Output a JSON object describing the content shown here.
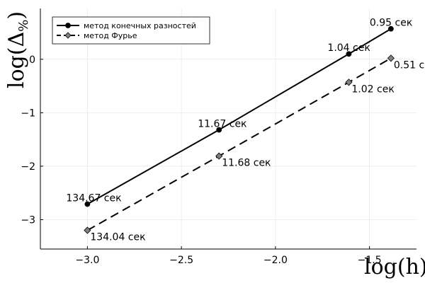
{
  "chart_data": {
    "type": "line",
    "title": "",
    "xlabel": "log(h)",
    "ylabel_main": "log(Δ",
    "ylabel_sub": "%",
    "ylabel_close": ")",
    "xlim": [
      -3.25,
      -1.25
    ],
    "ylim": [
      -3.55,
      0.95
    ],
    "xticks": [
      -3.0,
      -2.5,
      -2.0,
      -1.5
    ],
    "xtick_labels": [
      "−3.0",
      "−2.5",
      "−2.0",
      "−1.5"
    ],
    "yticks": [
      -3,
      -2,
      -1,
      0
    ],
    "ytick_labels": [
      "−3",
      "−2",
      "−1",
      "0"
    ],
    "grid": true,
    "legend_position": "top-left",
    "series": [
      {
        "name": "метод конечных разностей",
        "line_style": "solid",
        "marker": "circle",
        "color": "#000000",
        "marker_color": "#000000",
        "x": [
          -3.0,
          -2.3,
          -1.61,
          -1.386
        ],
        "y": [
          -2.71,
          -1.32,
          0.1,
          0.57
        ],
        "labels": [
          "134.67 сек",
          "11.67 сек",
          "1.04 сек",
          "0.95 сек"
        ]
      },
      {
        "name": "метод Фурье",
        "line_style": "dashed",
        "marker": "diamond",
        "color": "#000000",
        "marker_color": "#808080",
        "x": [
          -3.0,
          -2.3,
          -1.61,
          -1.386
        ],
        "y": [
          -3.2,
          -1.81,
          -0.43,
          0.02
        ],
        "labels": [
          "134.04 сек",
          "11.68 сек",
          "1.02 сек",
          "0.51 сек"
        ]
      }
    ]
  }
}
